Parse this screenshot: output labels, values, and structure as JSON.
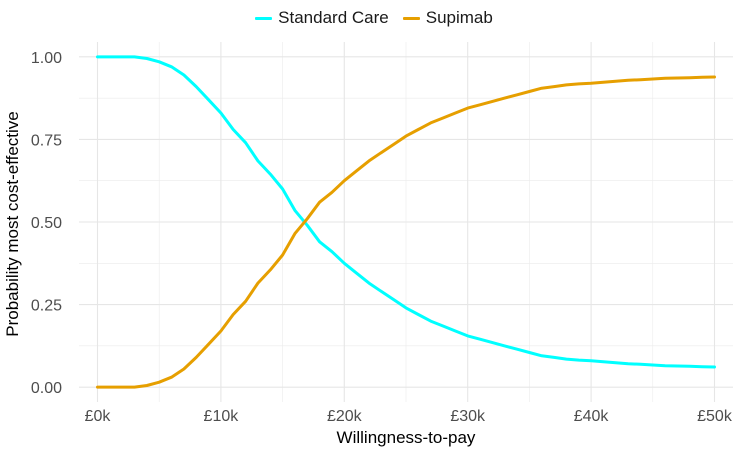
{
  "chart_data": {
    "type": "line",
    "xlabel": "Willingness-to-pay",
    "ylabel": "Probability most cost-effective",
    "xlim": [
      -1500,
      51500
    ],
    "ylim": [
      -0.045,
      1.045
    ],
    "x_ticks": [
      0,
      10000,
      20000,
      30000,
      40000,
      50000
    ],
    "x_tick_labels": [
      "£0k",
      "£10k",
      "£20k",
      "£30k",
      "£40k",
      "£50k"
    ],
    "y_ticks": [
      0,
      0.25,
      0.5,
      0.75,
      1.0
    ],
    "y_tick_labels": [
      "0.00",
      "0.25",
      "0.50",
      "0.75",
      "1.00"
    ],
    "grid": true,
    "legend_position": "top",
    "x": [
      0,
      1000,
      2000,
      3000,
      4000,
      5000,
      6000,
      7000,
      8000,
      9000,
      10000,
      11000,
      12000,
      13000,
      14000,
      15000,
      16000,
      17000,
      18000,
      19000,
      20000,
      21000,
      22000,
      23000,
      24000,
      25000,
      26000,
      27000,
      28000,
      29000,
      30000,
      31000,
      32000,
      33000,
      34000,
      35000,
      36000,
      37000,
      38000,
      39000,
      40000,
      41000,
      42000,
      43000,
      44000,
      45000,
      46000,
      47000,
      48000,
      49000,
      50000
    ],
    "series": [
      {
        "name": "Standard Care",
        "color": "#00ffff",
        "values": [
          1.0,
          1.0,
          1.0,
          1.0,
          0.995,
          0.985,
          0.97,
          0.945,
          0.91,
          0.87,
          0.83,
          0.78,
          0.74,
          0.685,
          0.645,
          0.6,
          0.535,
          0.49,
          0.44,
          0.41,
          0.375,
          0.345,
          0.315,
          0.29,
          0.265,
          0.24,
          0.22,
          0.2,
          0.185,
          0.17,
          0.155,
          0.145,
          0.135,
          0.125,
          0.115,
          0.105,
          0.095,
          0.09,
          0.085,
          0.082,
          0.08,
          0.077,
          0.074,
          0.071,
          0.069,
          0.067,
          0.065,
          0.064,
          0.063,
          0.062,
          0.061
        ]
      },
      {
        "name": "Supimab",
        "color": "#e69f00",
        "values": [
          0.0,
          0.0,
          0.0,
          0.0,
          0.005,
          0.015,
          0.03,
          0.055,
          0.09,
          0.13,
          0.17,
          0.22,
          0.26,
          0.315,
          0.355,
          0.4,
          0.465,
          0.51,
          0.56,
          0.59,
          0.625,
          0.655,
          0.685,
          0.71,
          0.735,
          0.76,
          0.78,
          0.8,
          0.815,
          0.83,
          0.845,
          0.855,
          0.865,
          0.875,
          0.885,
          0.895,
          0.905,
          0.91,
          0.915,
          0.918,
          0.92,
          0.923,
          0.926,
          0.929,
          0.931,
          0.933,
          0.935,
          0.936,
          0.937,
          0.938,
          0.939
        ]
      }
    ]
  }
}
